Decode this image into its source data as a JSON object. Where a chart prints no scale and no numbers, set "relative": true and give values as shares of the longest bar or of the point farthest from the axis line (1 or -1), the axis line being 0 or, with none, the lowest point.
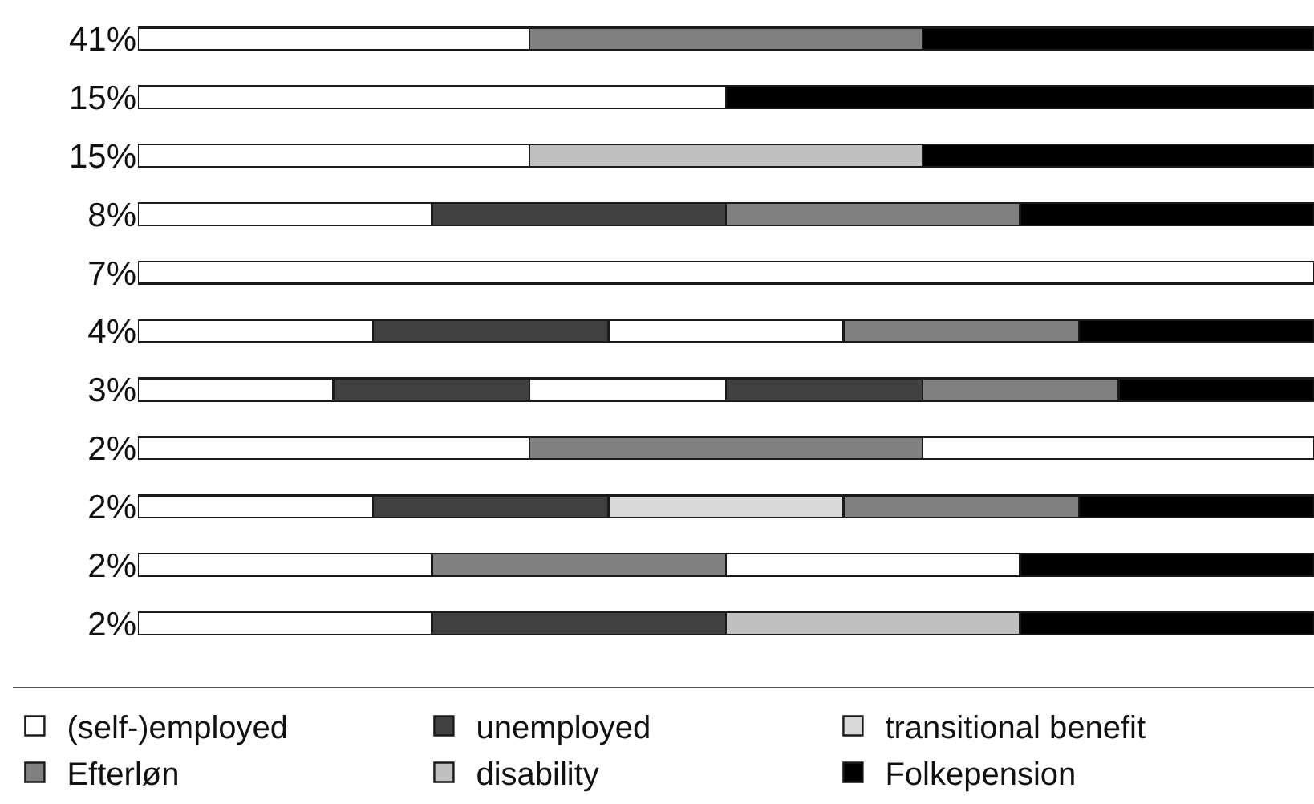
{
  "chart_data": {
    "type": "bar",
    "orientation": "horizontal",
    "stacked": true,
    "relative": true,
    "legend": "bottom",
    "categories": [
      "41%",
      "15%",
      "15%",
      "8%",
      "7%",
      "4%",
      "3%",
      "2%",
      "2%",
      "2%",
      "2%"
    ],
    "series": [
      {
        "name": "(self-)employed",
        "color": "#ffffff",
        "values": [
          0.333,
          0.5,
          0.333,
          0.25,
          1,
          0.2,
          0.166,
          0.333,
          0.2,
          0.25,
          0.25
        ]
      },
      {
        "name": "unemployed",
        "color": "#404040",
        "values": [
          null,
          null,
          null,
          0.25,
          null,
          0.2,
          0.167,
          null,
          0.2,
          null,
          0.25
        ]
      },
      {
        "color": "#ffffff",
        "values": [
          null,
          null,
          null,
          null,
          null,
          0.2,
          0.167,
          null,
          null,
          null,
          null
        ]
      },
      {
        "color": "#404040",
        "values": [
          null,
          null,
          null,
          null,
          null,
          null,
          0.167,
          null,
          null,
          null,
          null
        ]
      },
      {
        "name": "transitional benefit",
        "color": "#d9d9d9",
        "values": [
          null,
          null,
          null,
          null,
          null,
          null,
          null,
          null,
          0.2,
          null,
          null
        ]
      },
      {
        "name": "Efterløn",
        "color": "#808080",
        "values": [
          0.334,
          null,
          null,
          0.25,
          null,
          0.2,
          0.167,
          0.334,
          0.2,
          0.25,
          null
        ]
      },
      {
        "name": "disability",
        "color": "#c0c0c0",
        "values": [
          null,
          null,
          0.334,
          null,
          null,
          null,
          null,
          null,
          null,
          null,
          0.25
        ]
      },
      {
        "color": "#ffffff",
        "values": [
          null,
          null,
          null,
          null,
          null,
          null,
          null,
          0.333,
          null,
          0.25,
          null
        ]
      },
      {
        "name": "Folkepension",
        "color": "#000000",
        "values": [
          0.333,
          0.5,
          0.333,
          0.25,
          null,
          0.2,
          0.166,
          null,
          0.2,
          0.25,
          0.25
        ]
      }
    ]
  }
}
